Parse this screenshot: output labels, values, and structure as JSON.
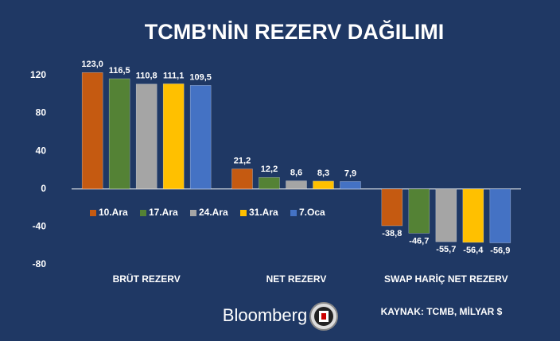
{
  "chart_data": {
    "type": "bar",
    "title": "TCMB'NİN REZERV DAĞILIMI",
    "categories": [
      "BRÜT REZERV",
      "NET REZERV",
      "SWAP HARİÇ NET REZERV"
    ],
    "series": [
      {
        "name": "10.Ara",
        "color": "#c55a11",
        "values": [
          123.0,
          21.2,
          -38.8
        ],
        "value_labels": [
          "123,0",
          "21,2",
          "-38,8"
        ]
      },
      {
        "name": "17.Ara",
        "color": "#548235",
        "values": [
          116.5,
          12.2,
          -46.7
        ],
        "value_labels": [
          "116,5",
          "12,2",
          "-46,7"
        ]
      },
      {
        "name": "24.Ara",
        "color": "#a5a5a5",
        "values": [
          110.8,
          8.6,
          -55.7
        ],
        "value_labels": [
          "110,8",
          "8,6",
          "-55,7"
        ]
      },
      {
        "name": "31.Ara",
        "color": "#ffc000",
        "values": [
          111.1,
          8.3,
          -56.4
        ],
        "value_labels": [
          "111,1",
          "8,3",
          "-56,4"
        ]
      },
      {
        "name": "7.Oca",
        "color": "#4472c4",
        "values": [
          109.5,
          7.9,
          -56.9
        ],
        "value_labels": [
          "109,5",
          "7,9",
          "-56,9"
        ]
      }
    ],
    "ylim": [
      -85,
      135
    ],
    "yticks": [
      -80,
      -40,
      0,
      40,
      80,
      120
    ],
    "legend": "inside-middle-left",
    "brand": "Bloomberg",
    "source": "KAYNAK: TCMB, MİLYAR $"
  }
}
